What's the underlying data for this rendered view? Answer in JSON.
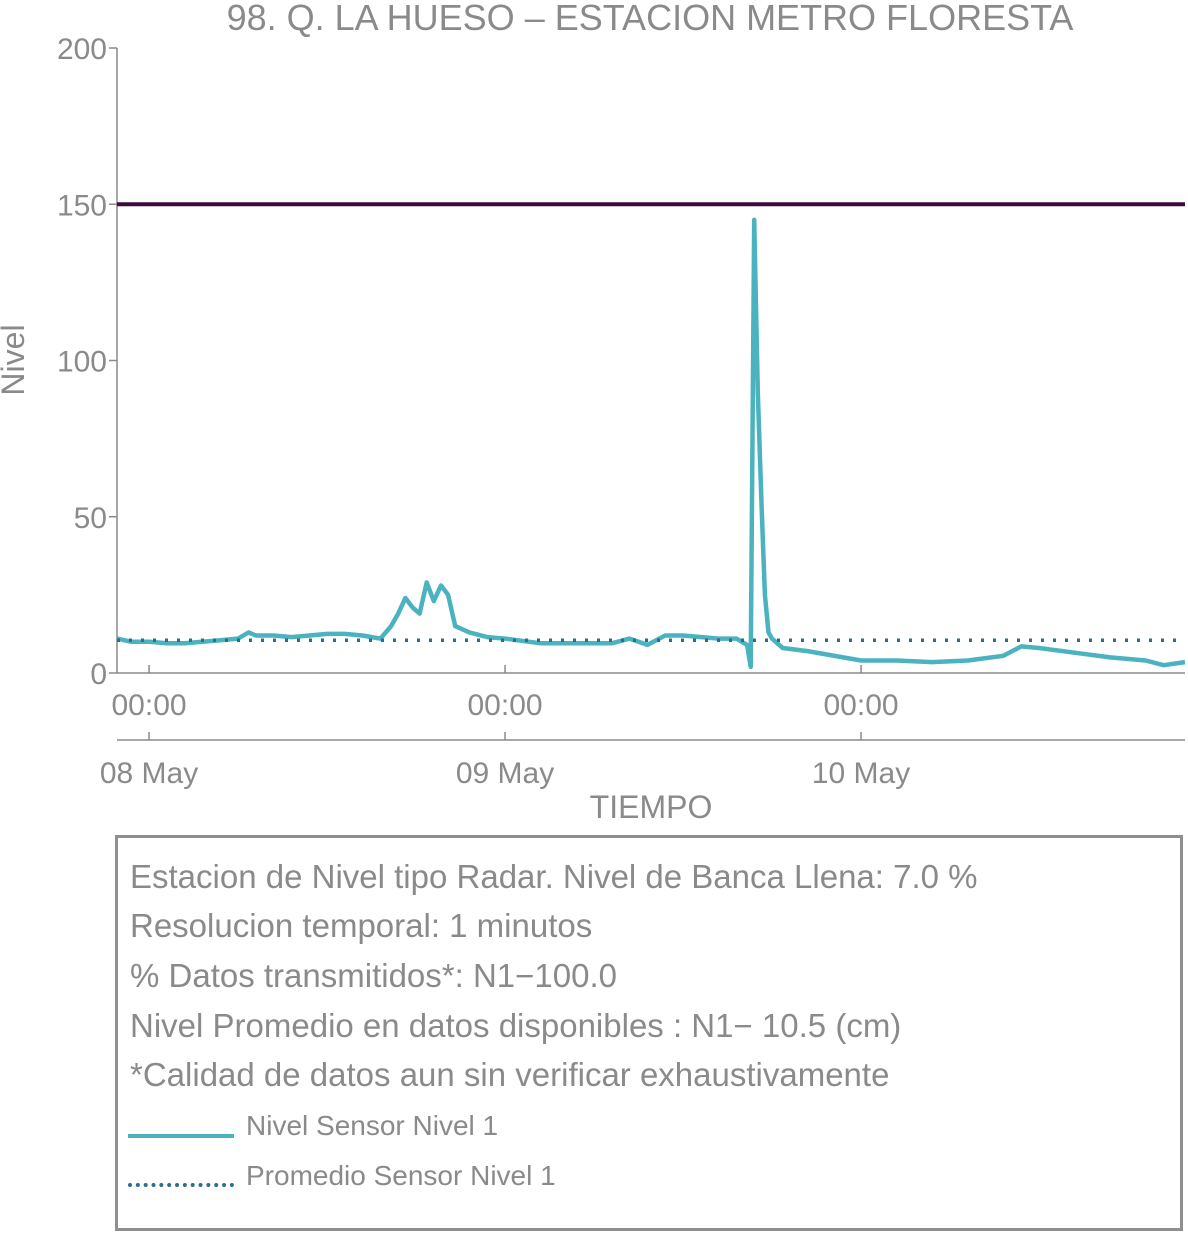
{
  "chart_data": {
    "type": "line",
    "title": "98. Q. LA HUESO – ESTACION METRO FLORESTA",
    "xlabel": "TIEMPO",
    "ylabel": "Nivel",
    "ylim": [
      0,
      200
    ],
    "yticks": [
      0,
      50,
      100,
      150,
      200
    ],
    "xlim_days": [
      -0.09,
      2.91
    ],
    "xticks": [
      {
        "day": 0,
        "time": "00:00",
        "date": "08 May"
      },
      {
        "day": 1,
        "time": "00:00",
        "date": "09 May"
      },
      {
        "day": 2,
        "time": "00:00",
        "date": "10 May"
      }
    ],
    "threshold": {
      "value": 150,
      "color": "#3d0a3d"
    },
    "series": [
      {
        "name": "Nivel Sensor Nivel 1",
        "color": "#4ab3bf",
        "style": "solid",
        "x": [
          -0.09,
          -0.05,
          0.0,
          0.05,
          0.1,
          0.15,
          0.2,
          0.25,
          0.28,
          0.3,
          0.35,
          0.4,
          0.45,
          0.5,
          0.55,
          0.6,
          0.65,
          0.68,
          0.7,
          0.72,
          0.74,
          0.76,
          0.78,
          0.8,
          0.82,
          0.84,
          0.86,
          0.9,
          0.95,
          1.0,
          1.1,
          1.2,
          1.3,
          1.35,
          1.4,
          1.45,
          1.5,
          1.6,
          1.65,
          1.68,
          1.69,
          1.7,
          1.71,
          1.72,
          1.73,
          1.74,
          1.75,
          1.78,
          1.85,
          1.95,
          2.0,
          2.1,
          2.2,
          2.3,
          2.4,
          2.45,
          2.5,
          2.6,
          2.7,
          2.8,
          2.85,
          2.91
        ],
        "values": [
          11,
          10,
          10,
          9.5,
          9.5,
          10,
          10.5,
          11,
          13,
          12,
          12,
          11.5,
          12,
          12.5,
          12.5,
          12,
          11,
          15,
          19,
          24,
          21,
          19,
          29,
          23,
          28,
          25,
          15,
          13,
          11.5,
          11,
          9.5,
          9.5,
          9.5,
          11,
          9,
          12,
          12,
          11,
          11,
          9,
          2,
          145,
          90,
          55,
          25,
          13,
          11,
          8,
          7,
          5,
          4,
          4,
          3.5,
          4,
          5.5,
          8.5,
          8,
          6.5,
          5,
          4,
          2.5,
          3.5
        ]
      },
      {
        "name": "Promedio Sensor Nivel 1",
        "color": "#2e6d8e",
        "style": "dotted",
        "x": [
          -0.09,
          2.91
        ],
        "values": [
          10.5,
          10.5
        ]
      }
    ],
    "legend": "bottom-left"
  },
  "info": {
    "lines": [
      "Estacion de Nivel tipo Radar. Nivel de Banca Llena:  7.0 %",
      "Resolucion temporal: 1 minutos",
      "% Datos transmitidos*: N1−100.0",
      "Nivel Promedio en datos disponibles : N1− 10.5 (cm)",
      "*Calidad de datos aun sin verificar exhaustivamente"
    ],
    "legend": [
      {
        "label": "Nivel Sensor Nivel 1",
        "color": "#4ab3bf",
        "style": "solid"
      },
      {
        "label": "Promedio Sensor Nivel 1",
        "color": "#2e6d8e",
        "style": "dotted"
      }
    ]
  }
}
